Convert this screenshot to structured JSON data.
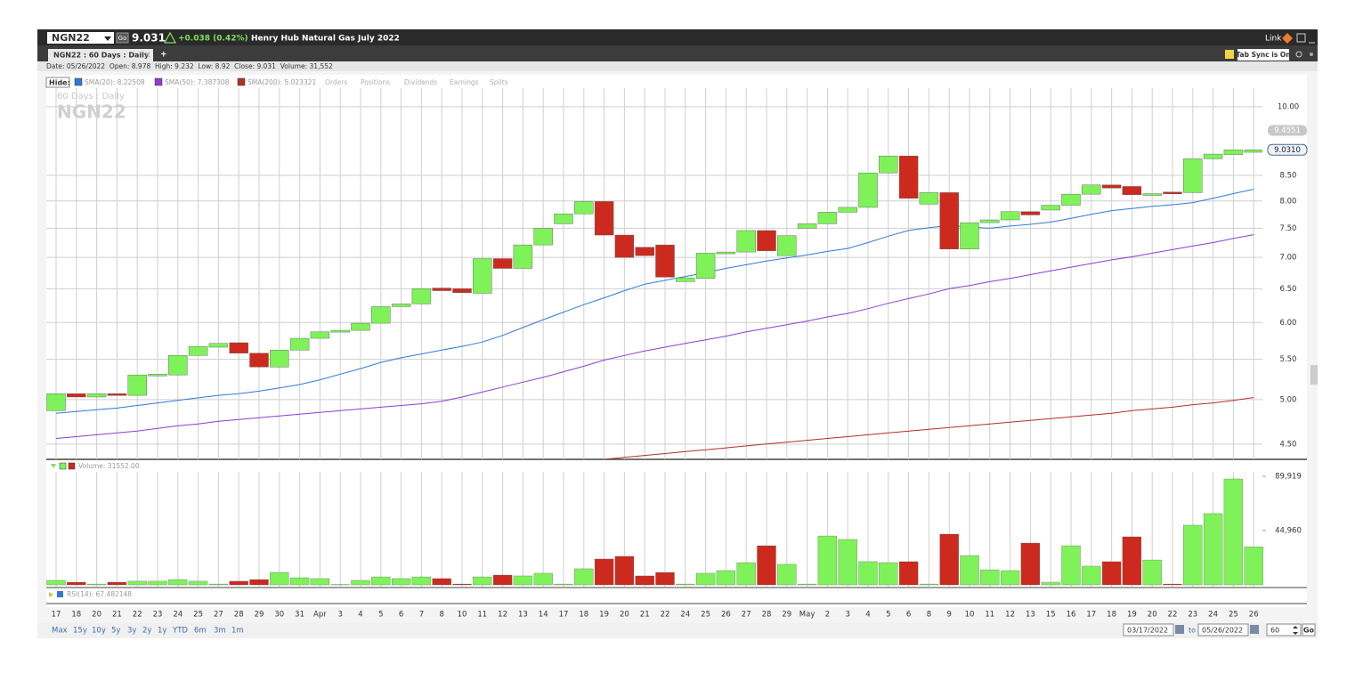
{
  "header": {
    "symbol": "NGN22",
    "go": "Go",
    "last": "9.031",
    "change": "+0.038 (0.42%)",
    "name": "Henry Hub Natural Gas July 2022",
    "link": "Link"
  },
  "tabs": {
    "tab": "NGN22 : 60 Days : Daily",
    "add": "+",
    "sync": "Tab Sync is On"
  },
  "info": "Date: 05/26/2022  Open: 8.978  High: 9.232  Low: 8.92  Close: 9.031  Volume: 31,552",
  "legend": {
    "hide": "Hide:",
    "links": [
      "Orders",
      "Positions",
      "Dividends",
      "Earnings",
      "Splits"
    ]
  },
  "chart_data": {
    "type": "candlestick",
    "watermark": [
      "60 Days : Daily",
      "NGN22"
    ],
    "categories": [
      "17",
      "18",
      "20",
      "21",
      "22",
      "23",
      "24",
      "25",
      "27",
      "28",
      "29",
      "30",
      "31",
      "Apr",
      "3",
      "4",
      "5",
      "6",
      "7",
      "8",
      "10",
      "11",
      "12",
      "13",
      "14",
      "17",
      "18",
      "19",
      "20",
      "21",
      "22",
      "24",
      "25",
      "26",
      "27",
      "28",
      "29",
      "May",
      "2",
      "3",
      "4",
      "5",
      "6",
      "8",
      "9",
      "10",
      "11",
      "12",
      "13",
      "15",
      "16",
      "17",
      "18",
      "19",
      "20",
      "22",
      "23",
      "24",
      "25",
      "26"
    ],
    "open": [
      4.87,
      5.07,
      5.03,
      5.07,
      5.05,
      5.3,
      5.3,
      5.55,
      5.66,
      5.72,
      5.58,
      5.4,
      5.62,
      5.78,
      5.87,
      5.89,
      5.99,
      6.23,
      6.27,
      6.51,
      6.5,
      6.43,
      6.98,
      6.82,
      7.21,
      7.58,
      7.76,
      7.99,
      7.38,
      7.17,
      7.21,
      6.61,
      6.66,
      7.07,
      7.09,
      7.46,
      7.03,
      7.5,
      7.58,
      7.79,
      7.88,
      8.55,
      8.9,
      7.94,
      8.16,
      7.14,
      7.6,
      7.65,
      7.8,
      7.83,
      7.92,
      8.13,
      8.31,
      8.28,
      8.13,
      8.17,
      8.16,
      8.84,
      8.93,
      8.978
    ],
    "close": [
      5.07,
      5.03,
      5.07,
      5.05,
      5.3,
      5.31,
      5.55,
      5.67,
      5.71,
      5.58,
      5.4,
      5.62,
      5.78,
      5.87,
      5.89,
      5.99,
      6.23,
      6.27,
      6.5,
      6.47,
      6.44,
      6.98,
      6.82,
      7.21,
      7.5,
      7.76,
      7.99,
      7.38,
      7.0,
      7.03,
      6.68,
      6.67,
      7.07,
      7.09,
      7.46,
      7.11,
      7.37,
      7.58,
      7.79,
      7.88,
      8.55,
      8.9,
      8.05,
      8.16,
      7.14,
      7.6,
      7.65,
      7.8,
      7.74,
      7.92,
      8.13,
      8.31,
      8.25,
      8.12,
      8.14,
      8.16,
      8.84,
      8.94,
      9.03,
      9.031
    ],
    "up_color": "#7ff25a",
    "down_color": "#cc2a1e",
    "series": [
      {
        "label": "SMA(20): 8.22508",
        "color": "#2f7ad6",
        "values": [
          4.84,
          4.86,
          4.88,
          4.9,
          4.93,
          4.96,
          4.99,
          5.02,
          5.05,
          5.07,
          5.1,
          5.14,
          5.18,
          5.24,
          5.31,
          5.38,
          5.46,
          5.52,
          5.57,
          5.62,
          5.67,
          5.73,
          5.82,
          5.93,
          6.04,
          6.15,
          6.26,
          6.36,
          6.47,
          6.57,
          6.63,
          6.69,
          6.75,
          6.82,
          6.88,
          6.94,
          6.99,
          7.04,
          7.1,
          7.15,
          7.25,
          7.36,
          7.46,
          7.51,
          7.55,
          7.52,
          7.5,
          7.54,
          7.57,
          7.61,
          7.68,
          7.75,
          7.82,
          7.86,
          7.9,
          7.93,
          7.97,
          8.05,
          8.14,
          8.22508
        ]
      },
      {
        "label": "SMA(50): 7.387308",
        "color": "#8a3fd0",
        "values": [
          4.56,
          4.58,
          4.6,
          4.62,
          4.64,
          4.67,
          4.7,
          4.72,
          4.75,
          4.77,
          4.79,
          4.81,
          4.83,
          4.85,
          4.87,
          4.89,
          4.91,
          4.93,
          4.95,
          4.98,
          5.03,
          5.09,
          5.15,
          5.21,
          5.27,
          5.34,
          5.41,
          5.49,
          5.55,
          5.61,
          5.66,
          5.71,
          5.76,
          5.81,
          5.87,
          5.92,
          5.97,
          6.02,
          6.08,
          6.13,
          6.2,
          6.28,
          6.35,
          6.42,
          6.5,
          6.55,
          6.61,
          6.66,
          6.72,
          6.78,
          6.84,
          6.9,
          6.96,
          7.01,
          7.07,
          7.13,
          7.19,
          7.25,
          7.32,
          7.387308
        ]
      },
      {
        "label": "SMA(200): 5.023321",
        "color": "#b0302a",
        "values": [
          null,
          null,
          null,
          null,
          null,
          null,
          null,
          null,
          null,
          null,
          null,
          null,
          null,
          null,
          null,
          null,
          null,
          null,
          null,
          null,
          null,
          null,
          null,
          null,
          null,
          null,
          null,
          4.34,
          4.36,
          4.38,
          4.4,
          4.42,
          4.44,
          4.46,
          4.48,
          4.5,
          4.52,
          4.54,
          4.56,
          4.58,
          4.6,
          4.62,
          4.64,
          4.66,
          4.68,
          4.7,
          4.72,
          4.74,
          4.76,
          4.78,
          4.8,
          4.82,
          4.84,
          4.87,
          4.89,
          4.91,
          4.94,
          4.96,
          4.99,
          5.023321
        ]
      }
    ],
    "ylim": [
      4.34,
      10.45
    ],
    "log_scale": true,
    "grid": true,
    "yticks": [
      {
        "value": 10,
        "label": "10.00"
      },
      {
        "value": 8.5,
        "label": "8.50"
      },
      {
        "value": 8,
        "label": "8.00"
      },
      {
        "value": 7.5,
        "label": "7.50"
      },
      {
        "value": 7,
        "label": "7.00"
      },
      {
        "value": 6.5,
        "label": "6.50"
      },
      {
        "value": 6,
        "label": "6.00"
      },
      {
        "value": 5.5,
        "label": "5.50"
      },
      {
        "value": 5,
        "label": "5.00"
      },
      {
        "value": 4.5,
        "label": "4.50"
      }
    ],
    "price_labels": [
      {
        "value": 9.4551,
        "label": "9.4551"
      },
      {
        "value": 9.031,
        "label": "9.0310"
      }
    ],
    "volume": {
      "label": "Volume: 31552.00",
      "values": [
        3700,
        2200,
        700,
        2200,
        3000,
        3000,
        4400,
        3000,
        700,
        3000,
        4400,
        10300,
        5900,
        5200,
        300,
        3700,
        6600,
        5200,
        6600,
        5200,
        700,
        6600,
        8100,
        7400,
        9600,
        700,
        13300,
        21400,
        23600,
        7400,
        10300,
        700,
        9600,
        11800,
        18400,
        32400,
        17000,
        700,
        40500,
        37600,
        19200,
        18400,
        19200,
        700,
        42000,
        24300,
        12500,
        11800,
        34600,
        2200,
        32400,
        15500,
        19200,
        39800,
        20600,
        700,
        49400,
        59000,
        87700,
        31552
      ],
      "ylim": [
        0,
        93600
      ],
      "yticks": [
        {
          "value": 89919,
          "label": "89,919"
        },
        {
          "value": 44960,
          "label": "44,960"
        }
      ]
    },
    "rsi_label": "RSI(14): 67.482148"
  },
  "footer": {
    "ranges": [
      "Max",
      "15y",
      "10y",
      "5y",
      "3y",
      "2y",
      "1y",
      "YTD",
      "6m",
      "3m",
      "1m"
    ],
    "from": "03/17/2022",
    "to": "to",
    "until": "05/26/2022",
    "count": "60",
    "go": "Go"
  }
}
